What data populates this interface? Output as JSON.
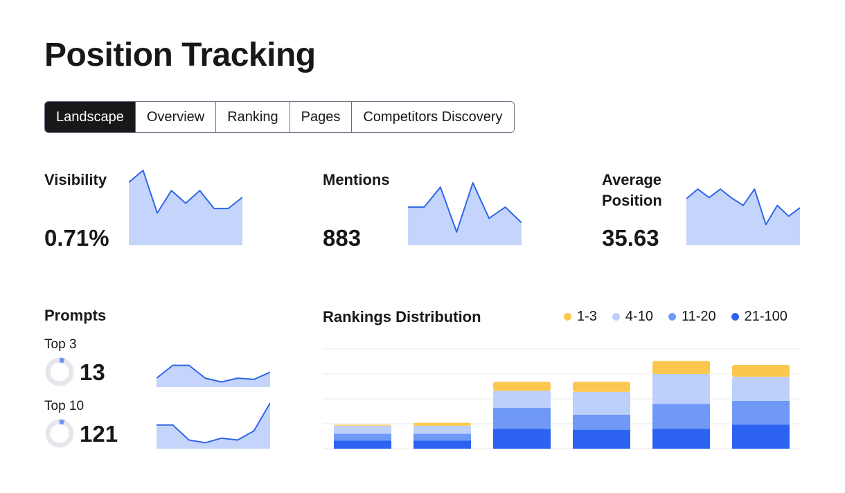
{
  "page": {
    "title": "Position Tracking"
  },
  "tabs": [
    {
      "label": "Landscape",
      "active": true
    },
    {
      "label": "Overview",
      "active": false
    },
    {
      "label": "Ranking",
      "active": false
    },
    {
      "label": "Pages",
      "active": false
    },
    {
      "label": "Competitors Discovery",
      "active": false
    }
  ],
  "metrics": {
    "visibility": {
      "label": "Visibility",
      "value": "0.71%",
      "trend": [
        0.84,
        1.0,
        0.43,
        0.73,
        0.56,
        0.73,
        0.49,
        0.49,
        0.64
      ]
    },
    "mentions": {
      "label": "Mentions",
      "value": "883",
      "trend": [
        0.61,
        0.61,
        0.93,
        0.21,
        1.0,
        0.43,
        0.61,
        0.36
      ]
    },
    "average_position": {
      "label": "Average Position",
      "value": "35.63",
      "trend": [
        0.77,
        0.93,
        0.79,
        0.93,
        0.78,
        0.66,
        0.93,
        0.34,
        0.66,
        0.48,
        0.62
      ]
    }
  },
  "prompts": {
    "title": "Prompts",
    "top3": {
      "label": "Top 3",
      "value": "13",
      "share": 0.06,
      "trend": [
        0.35,
        0.85,
        0.85,
        0.35,
        0.2,
        0.35,
        0.3,
        0.58
      ]
    },
    "top10": {
      "label": "Top 10",
      "value": "121",
      "share": 0.06,
      "trend": [
        0.52,
        0.52,
        0.19,
        0.13,
        0.23,
        0.19,
        0.39,
        1.0
      ]
    }
  },
  "colors": {
    "accent_line": "#2f66e8",
    "spark_fill": "#c4d4fb",
    "donut_track": "#e6e7ec",
    "donut_fill": "#6f93f2",
    "grid": "#e9eaee"
  },
  "chart_data": {
    "type": "bar",
    "stacked": true,
    "title": "Rankings Distribution",
    "legend_position": "top-right",
    "grid": true,
    "ylim": [
      0,
      100
    ],
    "categories": [
      "",
      "",
      "",
      "",
      "",
      ""
    ],
    "series": [
      {
        "name": "21-100",
        "color": "#2b63f0",
        "values": [
          8,
          8,
          20,
          19,
          20,
          24
        ]
      },
      {
        "name": "11-20",
        "color": "#6f98f7",
        "values": [
          7,
          7,
          21,
          15,
          25,
          24
        ]
      },
      {
        "name": "4-10",
        "color": "#bdd0fb",
        "values": [
          8,
          8,
          17,
          23,
          30,
          24
        ]
      },
      {
        "name": "1-3",
        "color": "#fbc74f",
        "values": [
          1,
          3,
          9,
          10,
          13,
          12
        ]
      }
    ]
  }
}
